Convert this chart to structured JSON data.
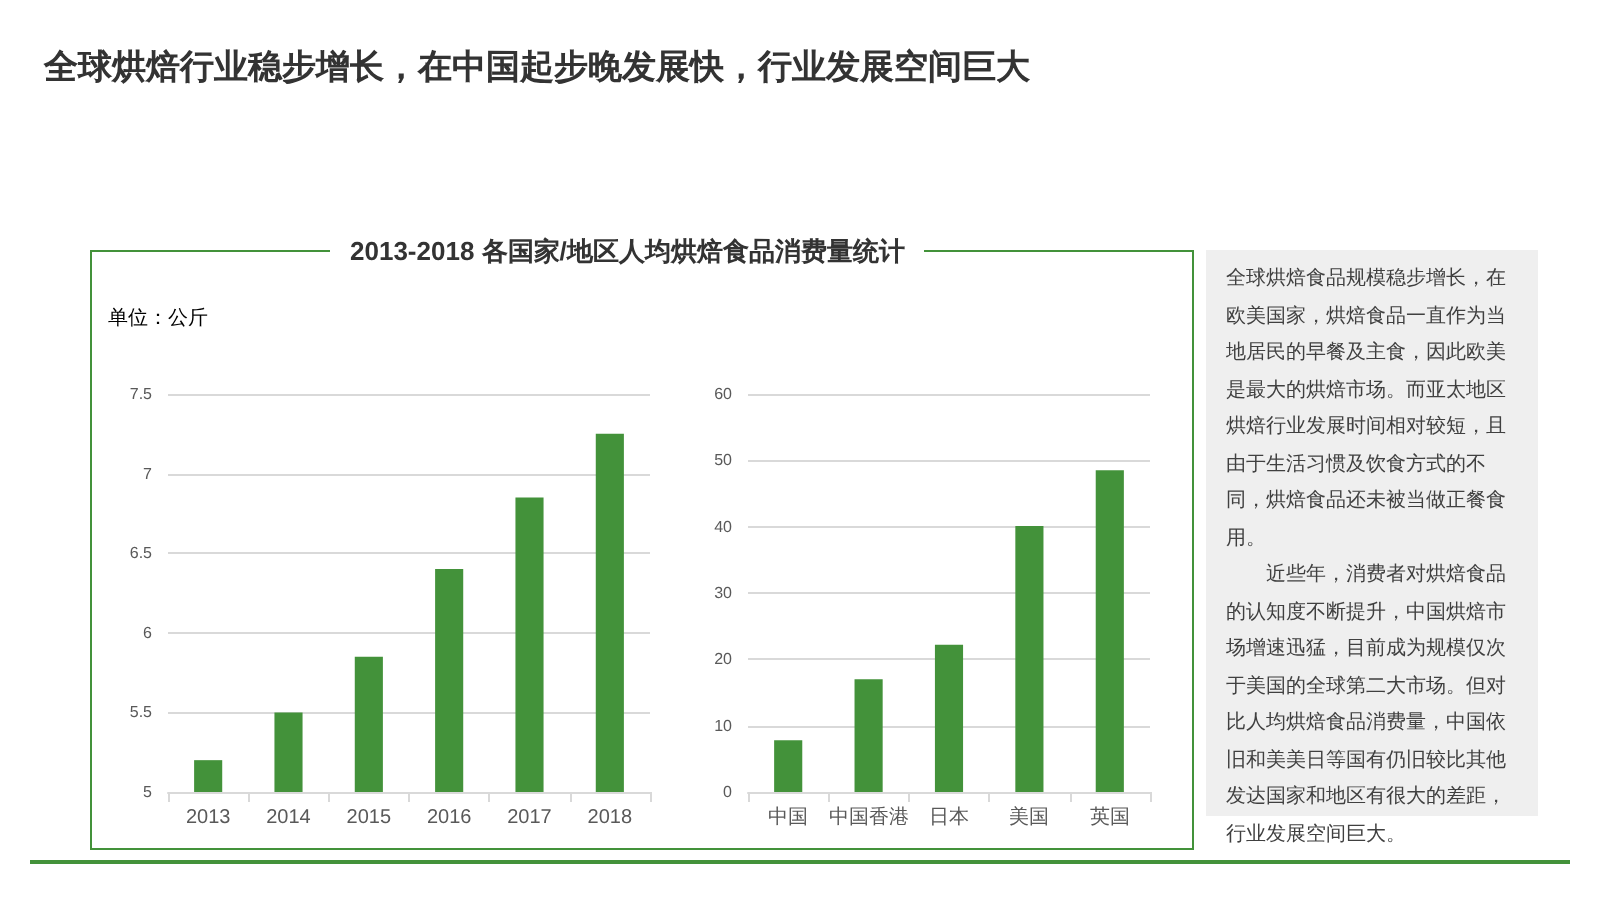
{
  "chart_data": [
    {
      "type": "bar",
      "title": "全球烘焙行业稳步增长，在中国起步晚发展快，行业发展空间巨大",
      "subtitle": "2013-2018 各国家/地区人均烘焙食品消费量统计",
      "ylabel": "单位：公斤",
      "categories": [
        "2013",
        "2014",
        "2015",
        "2016",
        "2017",
        "2018"
      ],
      "values": [
        5.2,
        5.5,
        5.85,
        6.4,
        6.85,
        7.25
      ],
      "color": "#43923a",
      "ylim": [
        5,
        7.5
      ],
      "yticks": [
        5,
        5.5,
        6,
        6.5,
        7,
        7.5
      ],
      "grid": "y"
    },
    {
      "type": "bar",
      "categories": [
        "中国",
        "中国香港",
        "日本",
        "美国",
        "英国"
      ],
      "values": [
        7.8,
        17,
        22.2,
        40.1,
        48.5
      ],
      "color": "#43923a",
      "ylim": [
        0,
        60
      ],
      "yticks": [
        0,
        10,
        20,
        30,
        40,
        50,
        60
      ],
      "grid": "y"
    },
    {
      "type": "other",
      "annotations": [
        "全球烘焙食品规模稳步增长，在欧美国家，烘焙食品一直作为当地居民的早餐及主食，因此欧美是最大的烘焙市场。而亚太地区烘焙行业发展时间相对较短，且由于生活习惯及饮食方式的不同，烘焙食品还未被当做正餐食用。",
        "近些年，消费者对烘焙食品的认知度不断提升，中国烘焙市场增速迅猛，目前成为规模仅次于美国的全球第二大市场。但对比人均烘焙食品消费量，中国依旧和美美日等国有仍旧较比其他发达国家和地区有很大的差距，行业发展空间巨大。"
      ]
    }
  ]
}
